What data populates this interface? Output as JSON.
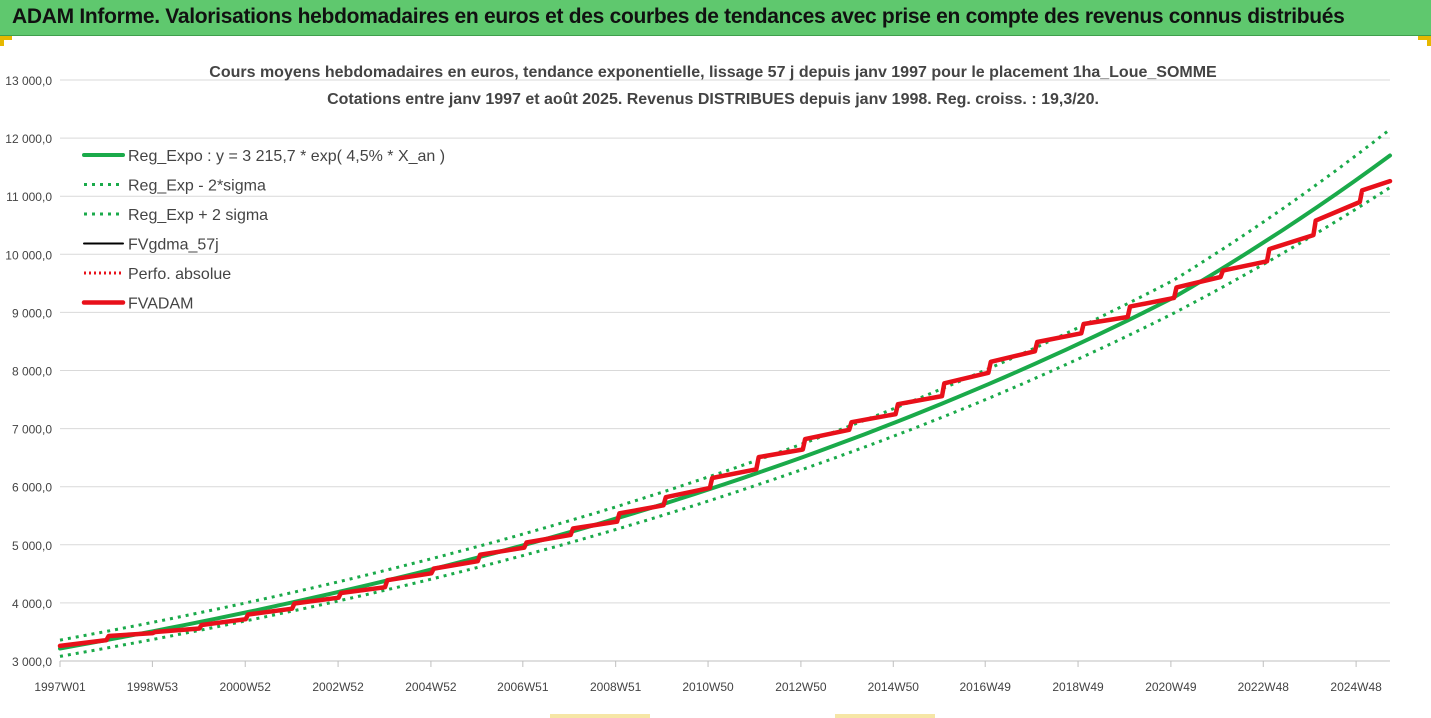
{
  "banner": {
    "title": "ADAM Informe. Valorisations hebdomadaires en euros et des courbes de tendances avec prise en compte des revenus connus distribués"
  },
  "colors": {
    "banner_bg": "#5fc86e",
    "trend_green": "#1aaa4a",
    "fv_red": "#e8101a",
    "gdma_black": "#000000"
  },
  "chart_data": {
    "type": "line",
    "title": "Cours moyens hebdomadaires en euros, tendance exponentielle, lissage 57 j depuis janv 1997 pour le placement 1ha_Loue_SOMME",
    "subtitle": "Cotations entre janv 1997 et août 2025. Revenus DISTRIBUES depuis janv 1998. Reg. croiss. : 19,3/20.",
    "xlabel": "",
    "ylabel": "",
    "ylim": [
      3000,
      13000
    ],
    "yticks": [
      3000,
      4000,
      5000,
      6000,
      7000,
      8000,
      9000,
      10000,
      11000,
      12000,
      13000
    ],
    "ytick_labels": [
      "3 000,0",
      "4 000,0",
      "5 000,0",
      "6 000,0",
      "7 000,0",
      "8 000,0",
      "9 000,0",
      "10 000,0",
      "11 000,0",
      "12 000,0",
      "13 000,0"
    ],
    "xlim": [
      1997.0,
      2025.65
    ],
    "xticks": [
      1997.0,
      1998.99,
      2000.99,
      2002.99,
      2004.99,
      2006.97,
      2008.97,
      2010.96,
      2012.96,
      2014.95,
      2016.93,
      2018.93,
      2020.93,
      2022.92,
      2024.92
    ],
    "xtick_labels": [
      "1997W01",
      "1998W53",
      "2000W52",
      "2002W52",
      "2004W52",
      "2006W51",
      "2008W51",
      "2010W50",
      "2012W50",
      "2014W50",
      "2016W49",
      "2018W49",
      "2020W49",
      "2022W48",
      "2024W48"
    ],
    "grid": true,
    "legend_position": "top-left",
    "series": [
      {
        "name": "Reg_Expo : y = 3 215,7 * exp( 4,5% *  X_an )",
        "style": "solid-thick",
        "color": "#1aaa4a",
        "x": [
          1997.0,
          2001.0,
          2005.0,
          2009.0,
          2013.0,
          2017.0,
          2021.0,
          2025.65
        ],
        "values": [
          3216,
          3835,
          4575,
          5457,
          6510,
          7765,
          9262,
          11700
        ]
      },
      {
        "name": "Reg_Exp - 2*sigma",
        "style": "dotted",
        "color": "#1aaa4a",
        "x": [
          1997.0,
          2001.0,
          2005.0,
          2009.0,
          2013.0,
          2017.0,
          2021.0,
          2025.65
        ],
        "values": [
          3080,
          3690,
          4410,
          5270,
          6300,
          7520,
          8990,
          11150
        ]
      },
      {
        "name": "Reg_Exp + 2 sigma",
        "style": "dotted",
        "color": "#1aaa4a",
        "x": [
          1997.0,
          2001.0,
          2005.0,
          2009.0,
          2013.0,
          2017.0,
          2021.0,
          2025.65
        ],
        "values": [
          3360,
          4000,
          4760,
          5660,
          6740,
          8030,
          9560,
          12150
        ]
      },
      {
        "name": "FVgdma_57j",
        "style": "solid",
        "color": "#000000",
        "x": [
          1997.0,
          1998.0,
          1998.05,
          1999.0,
          1999.05,
          2000.0,
          2000.05,
          2001.0,
          2001.05,
          2002.0,
          2002.05,
          2003.0,
          2003.05,
          2004.0,
          2004.05,
          2005.0,
          2005.05,
          2006.0,
          2006.05,
          2007.0,
          2007.05,
          2008.0,
          2008.05,
          2009.0,
          2009.05,
          2010.0,
          2010.05,
          2011.0,
          2011.05,
          2012.0,
          2012.05,
          2013.0,
          2013.05,
          2014.0,
          2014.05,
          2015.0,
          2015.05,
          2016.0,
          2016.05,
          2017.0,
          2017.05,
          2018.0,
          2018.05,
          2019.0,
          2019.05,
          2020.0,
          2020.05,
          2021.0,
          2021.05,
          2022.0,
          2022.05,
          2023.0,
          2023.05,
          2024.0,
          2024.05,
          2025.0,
          2025.05,
          2025.65
        ],
        "values": [
          3260,
          3360,
          3430,
          3480,
          3500,
          3560,
          3620,
          3720,
          3800,
          3900,
          3990,
          4090,
          4170,
          4270,
          4390,
          4510,
          4590,
          4720,
          4830,
          4950,
          5040,
          5170,
          5280,
          5400,
          5540,
          5680,
          5820,
          5980,
          6150,
          6300,
          6510,
          6640,
          6820,
          6980,
          7110,
          7250,
          7420,
          7560,
          7780,
          7960,
          8150,
          8330,
          8490,
          8640,
          8800,
          8920,
          9100,
          9250,
          9430,
          9610,
          9720,
          9880,
          10090,
          10330,
          10580,
          10900,
          11100,
          11260
        ]
      },
      {
        "name": "Perfo. absolue",
        "style": "dotted",
        "color": "#e8101a",
        "x": [
          1997.0,
          1998.0,
          1998.05,
          1999.0,
          1999.05,
          2000.0,
          2000.05,
          2001.0,
          2001.05,
          2002.0,
          2002.05,
          2003.0,
          2003.05,
          2004.0,
          2004.05,
          2005.0,
          2005.05,
          2006.0,
          2006.05,
          2007.0,
          2007.05,
          2008.0,
          2008.05,
          2009.0,
          2009.05,
          2010.0,
          2010.05,
          2011.0,
          2011.05,
          2012.0,
          2012.05,
          2013.0,
          2013.05,
          2014.0,
          2014.05,
          2015.0,
          2015.05,
          2016.0,
          2016.05,
          2017.0,
          2017.05,
          2018.0,
          2018.05,
          2019.0,
          2019.05,
          2020.0,
          2020.05,
          2021.0,
          2021.05,
          2022.0,
          2022.05,
          2023.0,
          2023.05,
          2024.0,
          2024.05,
          2025.0,
          2025.05,
          2025.65
        ],
        "values": [
          3260,
          3360,
          3430,
          3480,
          3500,
          3560,
          3620,
          3720,
          3800,
          3900,
          3990,
          4090,
          4170,
          4270,
          4390,
          4510,
          4590,
          4720,
          4830,
          4950,
          5040,
          5170,
          5280,
          5400,
          5540,
          5680,
          5820,
          5980,
          6150,
          6300,
          6510,
          6640,
          6820,
          6980,
          7110,
          7250,
          7420,
          7560,
          7780,
          7960,
          8150,
          8330,
          8490,
          8640,
          8800,
          8920,
          9100,
          9250,
          9430,
          9610,
          9720,
          9880,
          10090,
          10330,
          10580,
          10900,
          11100,
          11260
        ]
      },
      {
        "name": "FVADAM",
        "style": "solid-thick",
        "color": "#e8101a",
        "x": [
          1997.0,
          1998.0,
          1998.05,
          1999.0,
          1999.05,
          2000.0,
          2000.05,
          2001.0,
          2001.05,
          2002.0,
          2002.05,
          2003.0,
          2003.05,
          2004.0,
          2004.05,
          2005.0,
          2005.05,
          2006.0,
          2006.05,
          2007.0,
          2007.05,
          2008.0,
          2008.05,
          2009.0,
          2009.05,
          2010.0,
          2010.05,
          2011.0,
          2011.05,
          2012.0,
          2012.05,
          2013.0,
          2013.05,
          2014.0,
          2014.05,
          2015.0,
          2015.05,
          2016.0,
          2016.05,
          2017.0,
          2017.05,
          2018.0,
          2018.05,
          2019.0,
          2019.05,
          2020.0,
          2020.05,
          2021.0,
          2021.05,
          2022.0,
          2022.05,
          2023.0,
          2023.05,
          2024.0,
          2024.05,
          2025.0,
          2025.05,
          2025.65
        ],
        "values": [
          3260,
          3360,
          3430,
          3480,
          3500,
          3560,
          3620,
          3720,
          3800,
          3900,
          3990,
          4090,
          4170,
          4270,
          4390,
          4510,
          4590,
          4720,
          4830,
          4950,
          5040,
          5170,
          5280,
          5400,
          5540,
          5680,
          5820,
          5980,
          6150,
          6300,
          6510,
          6640,
          6820,
          6980,
          7110,
          7250,
          7420,
          7560,
          7780,
          7960,
          8150,
          8330,
          8490,
          8640,
          8800,
          8920,
          9100,
          9250,
          9430,
          9610,
          9720,
          9880,
          10090,
          10330,
          10580,
          10900,
          11100,
          11260
        ]
      }
    ]
  }
}
